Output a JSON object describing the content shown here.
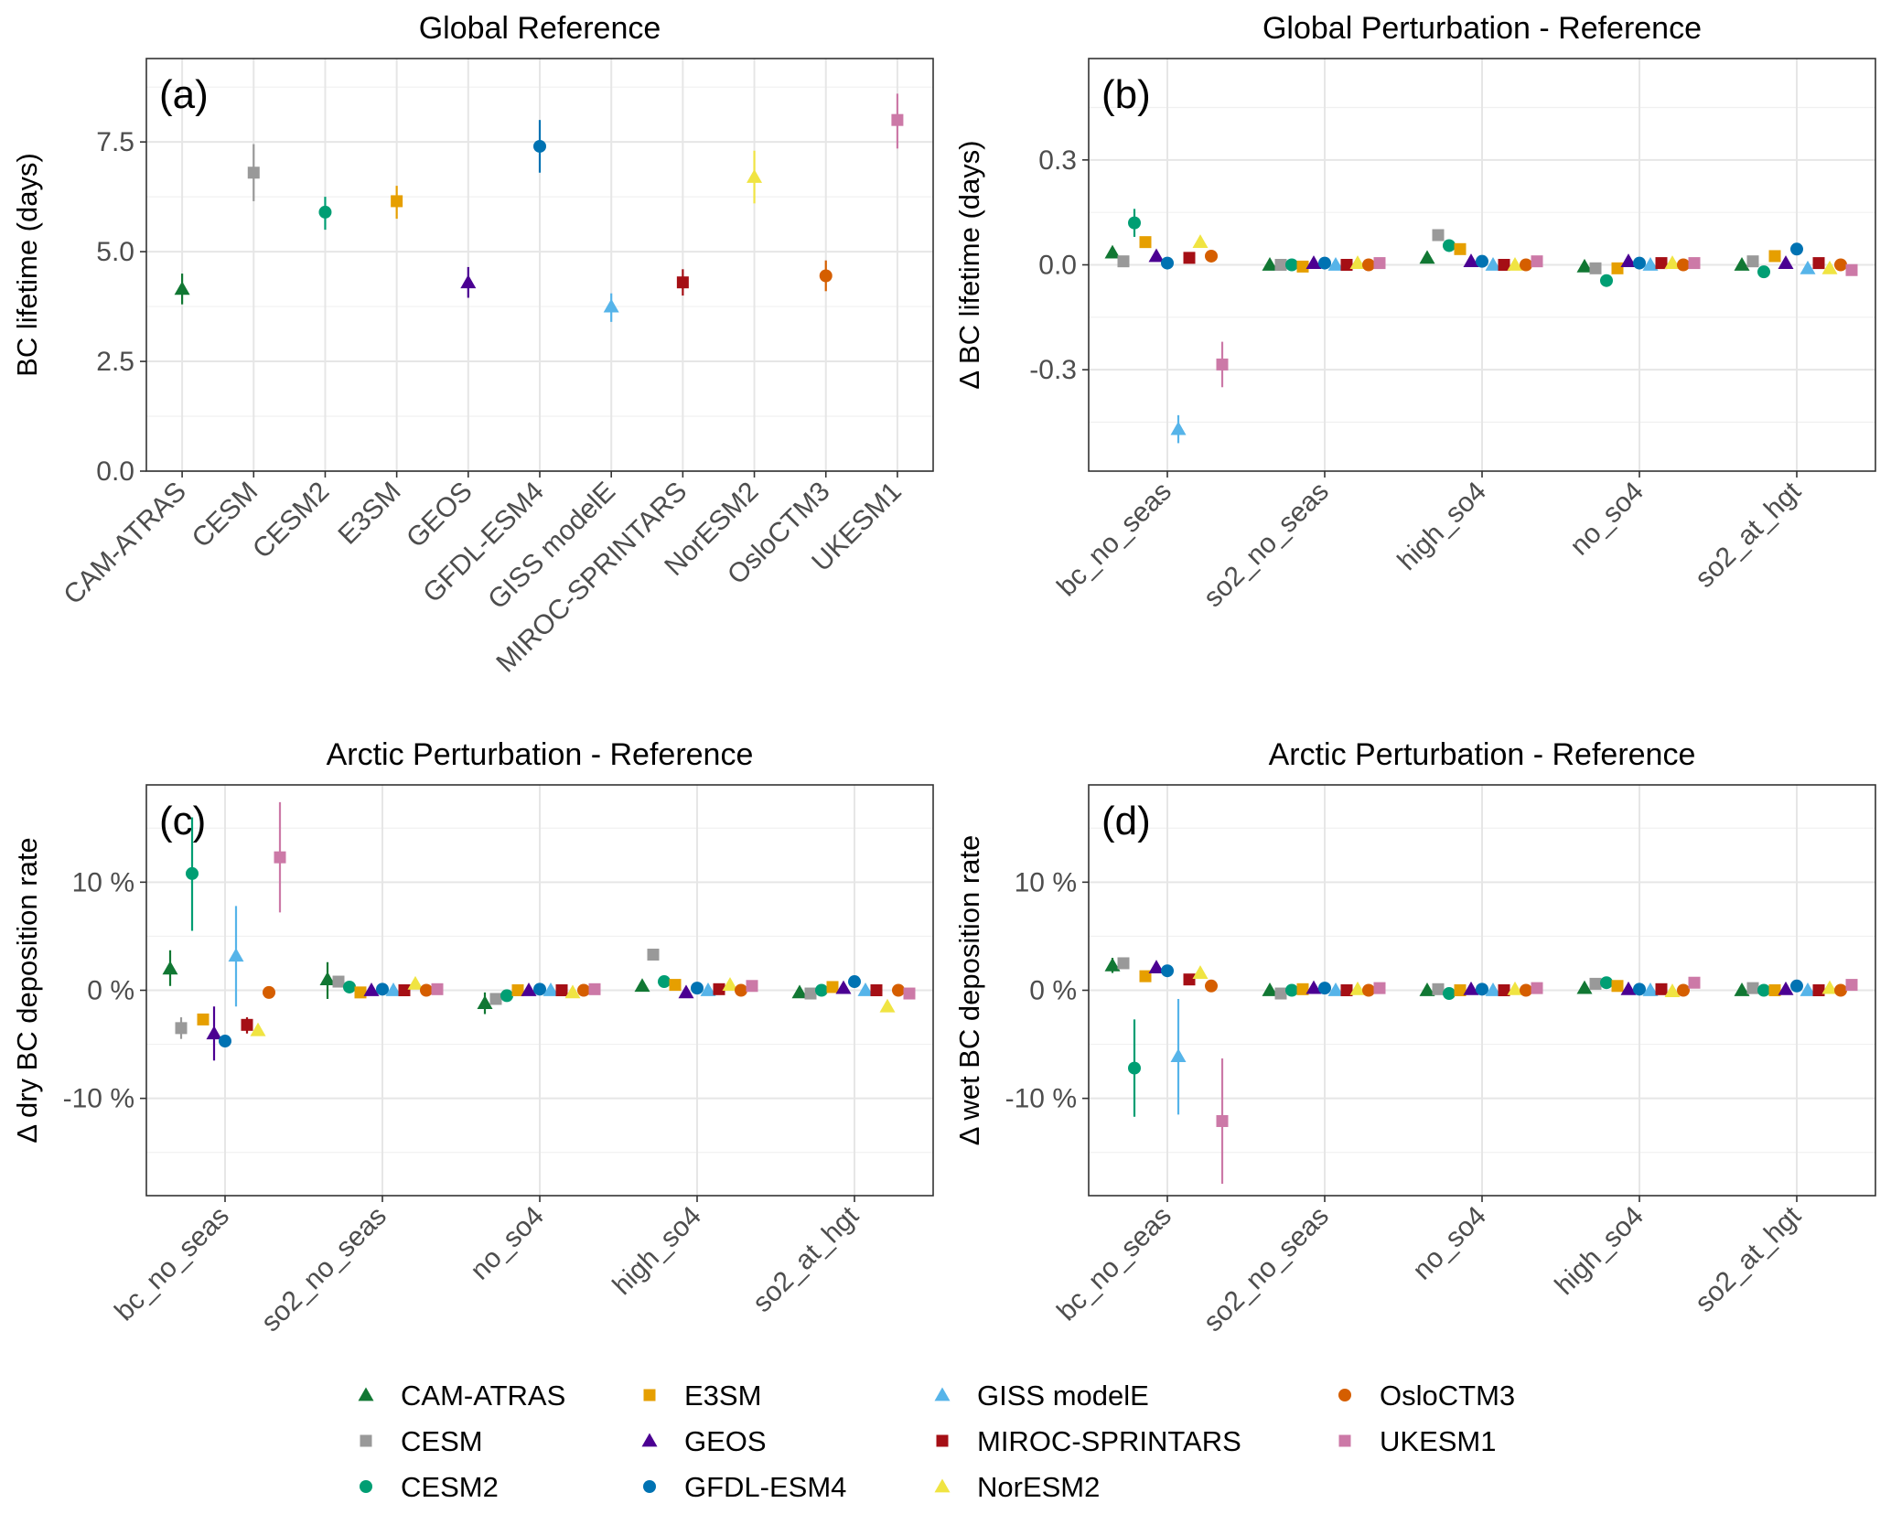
{
  "chart_data": [
    {
      "panel": "(a)",
      "type": "scatter",
      "title": "Global Reference",
      "xlabel": "",
      "ylabel": "BC lifetime (days)",
      "ylim": [
        0,
        9.4
      ],
      "yticks": [
        0,
        2.5,
        5,
        7.5
      ],
      "ytick_labels": [
        "0.0",
        "2.5",
        "5.0",
        "7.5"
      ],
      "grid": true,
      "categories": [
        "CAM-ATRAS",
        "CESM",
        "CESM2",
        "E3SM",
        "GEOS",
        "GFDL-ESM4",
        "GISS modelE",
        "MIROC-SPRINTARS",
        "NorESM2",
        "OsloCTM3",
        "UKESM1"
      ],
      "points": [
        {
          "model": "CAM-ATRAS",
          "y": 4.15,
          "lo": 3.8,
          "hi": 4.5
        },
        {
          "model": "CESM",
          "y": 6.8,
          "lo": 6.15,
          "hi": 7.45
        },
        {
          "model": "CESM2",
          "y": 5.9,
          "lo": 5.5,
          "hi": 6.25
        },
        {
          "model": "E3SM",
          "y": 6.15,
          "lo": 5.75,
          "hi": 6.5
        },
        {
          "model": "GEOS",
          "y": 4.3,
          "lo": 3.95,
          "hi": 4.65
        },
        {
          "model": "GFDL-ESM4",
          "y": 7.4,
          "lo": 6.8,
          "hi": 8.0
        },
        {
          "model": "GISS modelE",
          "y": 3.75,
          "lo": 3.4,
          "hi": 4.05
        },
        {
          "model": "MIROC-SPRINTARS",
          "y": 4.3,
          "lo": 4.0,
          "hi": 4.6
        },
        {
          "model": "NorESM2",
          "y": 6.7,
          "lo": 6.1,
          "hi": 7.3
        },
        {
          "model": "OsloCTM3",
          "y": 4.45,
          "lo": 4.1,
          "hi": 4.8
        },
        {
          "model": "UKESM1",
          "y": 8.0,
          "lo": 7.35,
          "hi": 8.6
        }
      ]
    },
    {
      "panel": "(b)",
      "type": "scatter",
      "title": "Global Perturbation - Reference",
      "xlabel": "",
      "ylabel": "Δ BC lifetime (days)",
      "ylim": [
        -0.59,
        0.59
      ],
      "yticks": [
        -0.3,
        0,
        0.3
      ],
      "ytick_labels": [
        "-0.3",
        "0.0",
        "0.3"
      ],
      "grid": true,
      "categories": [
        "bc_no_seas",
        "so2_no_seas",
        "high_so4",
        "no_so4",
        "so2_at_hgt"
      ],
      "series": [
        {
          "name": "CAM-ATRAS",
          "values": [
            0.035,
            0.0,
            0.02,
            -0.005,
            0.0
          ]
        },
        {
          "name": "CESM",
          "values": [
            0.01,
            0.0,
            0.085,
            -0.01,
            0.01
          ]
        },
        {
          "name": "CESM2",
          "values": [
            0.12,
            0.0,
            0.055,
            -0.045,
            -0.02
          ]
        },
        {
          "name": "E3SM",
          "values": [
            0.065,
            -0.005,
            0.045,
            -0.01,
            0.025
          ]
        },
        {
          "name": "GEOS",
          "values": [
            0.025,
            0.005,
            0.01,
            0.01,
            0.005
          ]
        },
        {
          "name": "GFDL-ESM4",
          "values": [
            0.005,
            0.005,
            0.01,
            0.005,
            0.045
          ]
        },
        {
          "name": "GISS modelE",
          "values": [
            -0.47,
            0.0,
            0.0,
            0.0,
            -0.01
          ]
        },
        {
          "name": "MIROC-SPRINTARS",
          "values": [
            0.02,
            0.0,
            0.0,
            0.005,
            0.005
          ]
        },
        {
          "name": "NorESM2",
          "values": [
            0.065,
            0.005,
            0.0,
            0.005,
            -0.01
          ]
        },
        {
          "name": "OsloCTM3",
          "values": [
            0.025,
            0.0,
            0.0,
            0.0,
            0.0
          ]
        },
        {
          "name": "UKESM1",
          "values": [
            -0.285,
            0.005,
            0.01,
            0.005,
            -0.015
          ]
        }
      ],
      "errors": {
        "CESM2.bc_no_seas": [
          0.08,
          0.16
        ],
        "GISS modelE.bc_no_seas": [
          -0.51,
          -0.43
        ],
        "UKESM1.bc_no_seas": [
          -0.35,
          -0.22
        ]
      }
    },
    {
      "panel": "(c)",
      "type": "scatter",
      "title": "Arctic Perturbation - Reference",
      "xlabel": "",
      "ylabel": "Δ dry BC deposition rate",
      "ylim": [
        -19,
        19
      ],
      "yticks": [
        -10,
        0,
        10
      ],
      "ytick_labels": [
        "-10 %",
        "0 %",
        "10 %"
      ],
      "grid": true,
      "categories": [
        "bc_no_seas",
        "so2_no_seas",
        "no_so4",
        "high_so4",
        "so2_at_hgt"
      ],
      "series": [
        {
          "name": "CAM-ATRAS",
          "values": [
            2.0,
            1.0,
            -1.2,
            0.4,
            -0.2
          ]
        },
        {
          "name": "CESM",
          "values": [
            -3.5,
            0.8,
            -0.8,
            3.3,
            -0.3
          ]
        },
        {
          "name": "CESM2",
          "values": [
            10.8,
            0.3,
            -0.5,
            0.8,
            0.0
          ]
        },
        {
          "name": "E3SM",
          "values": [
            -2.7,
            -0.2,
            0.0,
            0.5,
            0.3
          ]
        },
        {
          "name": "GEOS",
          "values": [
            -4.0,
            0.0,
            0.0,
            -0.2,
            0.2
          ]
        },
        {
          "name": "GFDL-ESM4",
          "values": [
            -4.7,
            0.1,
            0.1,
            0.2,
            0.8
          ]
        },
        {
          "name": "GISS modelE",
          "values": [
            3.2,
            0.0,
            0.0,
            0.0,
            0.0
          ]
        },
        {
          "name": "MIROC-SPRINTARS",
          "values": [
            -3.2,
            0.0,
            0.0,
            0.1,
            0.0
          ]
        },
        {
          "name": "NorESM2",
          "values": [
            -3.7,
            0.6,
            -0.2,
            0.5,
            -1.5
          ]
        },
        {
          "name": "OsloCTM3",
          "values": [
            -0.2,
            0.0,
            0.0,
            0.0,
            0.0
          ]
        },
        {
          "name": "UKESM1",
          "values": [
            12.3,
            0.1,
            0.1,
            0.4,
            -0.3
          ]
        }
      ],
      "errors": {
        "CAM-ATRAS.bc_no_seas": [
          0.4,
          3.7
        ],
        "CESM.bc_no_seas": [
          -4.5,
          -2.5
        ],
        "CESM2.bc_no_seas": [
          5.5,
          16.0
        ],
        "GEOS.bc_no_seas": [
          -6.5,
          -1.5
        ],
        "GISS modelE.bc_no_seas": [
          -1.5,
          7.8
        ],
        "MIROC-SPRINTARS.bc_no_seas": [
          -4.0,
          -2.5
        ],
        "UKESM1.bc_no_seas": [
          7.2,
          17.4
        ],
        "CAM-ATRAS.so2_no_seas": [
          -0.8,
          2.6
        ],
        "CAM-ATRAS.no_so4": [
          -2.2,
          -0.2
        ]
      }
    },
    {
      "panel": "(d)",
      "type": "scatter",
      "title": "Arctic Perturbation - Reference",
      "xlabel": "",
      "ylabel": "Δ wet BC deposition rate",
      "ylim": [
        -19,
        19
      ],
      "yticks": [
        -10,
        0,
        10
      ],
      "ytick_labels": [
        "-10 %",
        "0 %",
        "10 %"
      ],
      "grid": true,
      "categories": [
        "bc_no_seas",
        "so2_no_seas",
        "no_so4",
        "high_so4",
        "so2_at_hgt"
      ],
      "series": [
        {
          "name": "CAM-ATRAS",
          "values": [
            2.3,
            0.0,
            0.0,
            0.2,
            0.0
          ]
        },
        {
          "name": "CESM",
          "values": [
            2.5,
            -0.3,
            0.1,
            0.6,
            0.2
          ]
        },
        {
          "name": "CESM2",
          "values": [
            -7.2,
            0.0,
            -0.3,
            0.7,
            0.0
          ]
        },
        {
          "name": "E3SM",
          "values": [
            1.3,
            0.1,
            0.0,
            0.4,
            0.0
          ]
        },
        {
          "name": "GEOS",
          "values": [
            2.1,
            0.2,
            0.1,
            0.1,
            0.1
          ]
        },
        {
          "name": "GFDL-ESM4",
          "values": [
            1.8,
            0.2,
            0.1,
            0.1,
            0.4
          ]
        },
        {
          "name": "GISS modelE",
          "values": [
            -6.1,
            0.0,
            0.0,
            0.0,
            0.0
          ]
        },
        {
          "name": "MIROC-SPRINTARS",
          "values": [
            1.0,
            0.0,
            0.0,
            0.1,
            0.0
          ]
        },
        {
          "name": "NorESM2",
          "values": [
            1.6,
            0.1,
            0.1,
            -0.1,
            0.2
          ]
        },
        {
          "name": "OsloCTM3",
          "values": [
            0.4,
            0.0,
            0.0,
            0.0,
            0.0
          ]
        },
        {
          "name": "UKESM1",
          "values": [
            -12.1,
            0.2,
            0.2,
            0.7,
            0.5
          ]
        }
      ],
      "errors": {
        "CAM-ATRAS.bc_no_seas": [
          1.6,
          3.0
        ],
        "CESM2.bc_no_seas": [
          -11.7,
          -2.7
        ],
        "GISS modelE.bc_no_seas": [
          -11.5,
          -0.8
        ],
        "UKESM1.bc_no_seas": [
          -17.9,
          -6.3
        ]
      }
    }
  ],
  "legend": {
    "placement": "bottom",
    "items": [
      {
        "name": "CAM-ATRAS",
        "color": "#117733",
        "shape": "triangle"
      },
      {
        "name": "CESM",
        "color": "#999999",
        "shape": "square"
      },
      {
        "name": "CESM2",
        "color": "#009E73",
        "shape": "circle"
      },
      {
        "name": "E3SM",
        "color": "#E69F00",
        "shape": "square"
      },
      {
        "name": "GEOS",
        "color": "#4B0092",
        "shape": "triangle"
      },
      {
        "name": "GFDL-ESM4",
        "color": "#0072B2",
        "shape": "circle"
      },
      {
        "name": "GISS modelE",
        "color": "#56B4E9",
        "shape": "triangle"
      },
      {
        "name": "MIROC-SPRINTARS",
        "color": "#A50F15",
        "shape": "square"
      },
      {
        "name": "NorESM2",
        "color": "#F0E442",
        "shape": "triangle"
      },
      {
        "name": "OsloCTM3",
        "color": "#D55E00",
        "shape": "circle"
      },
      {
        "name": "UKESM1",
        "color": "#CC79A7",
        "shape": "square"
      }
    ]
  }
}
